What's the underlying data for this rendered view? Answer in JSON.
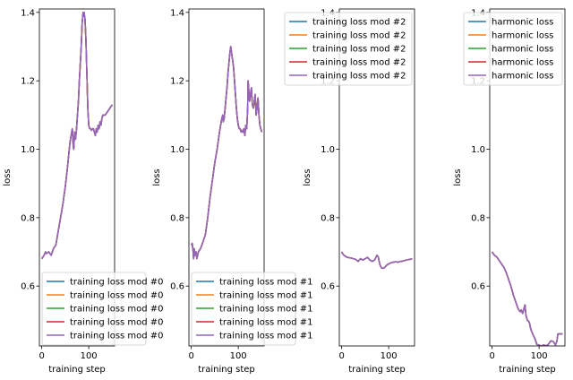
{
  "chart_data": [
    {
      "type": "line",
      "xlabel": "training step",
      "ylabel": "loss",
      "xlim": [
        -5,
        155
      ],
      "ylim": [
        0.425,
        1.41
      ],
      "xticks": [
        0,
        100
      ],
      "xtick_labels": [
        "0",
        "100"
      ],
      "yticks": [
        0.6,
        0.8,
        1.0,
        1.2,
        1.4
      ],
      "ytick_labels": [
        "0.6",
        "0.8",
        "1.0",
        "1.2",
        "1.4"
      ],
      "legend_position": "lower-right",
      "legend": [
        "training loss mod #0",
        "training loss mod #0",
        "training loss mod #0",
        "training loss mod #0",
        "training loss mod #0"
      ],
      "series": [
        {
          "name": "training loss mod #0",
          "x": [
            0,
            5,
            8,
            10,
            15,
            20,
            25,
            30,
            35,
            40,
            45,
            50,
            55,
            60,
            65,
            67,
            68,
            70,
            72,
            74,
            76,
            78,
            80,
            82,
            84,
            86,
            88,
            90,
            92,
            94,
            96,
            98,
            100,
            102,
            104,
            106,
            108,
            110,
            112,
            114,
            116,
            118,
            120,
            122,
            124,
            126,
            128,
            130,
            135,
            140,
            145,
            150
          ],
          "y": [
            0.68,
            0.69,
            0.7,
            0.695,
            0.7,
            0.69,
            0.71,
            0.72,
            0.76,
            0.8,
            0.84,
            0.89,
            0.95,
            1.02,
            1.06,
            1.01,
            1.0,
            1.05,
            1.03,
            1.06,
            1.1,
            1.14,
            1.2,
            1.25,
            1.3,
            1.37,
            1.4,
            1.4,
            1.38,
            1.32,
            1.22,
            1.12,
            1.07,
            1.06,
            1.06,
            1.055,
            1.06,
            1.06,
            1.05,
            1.04,
            1.06,
            1.05,
            1.07,
            1.06,
            1.08,
            1.07,
            1.09,
            1.1,
            1.1,
            1.11,
            1.12,
            1.13
          ]
        }
      ]
    },
    {
      "type": "line",
      "xlabel": "training step",
      "ylabel": "loss",
      "xlim": [
        -5,
        155
      ],
      "ylim": [
        0.425,
        1.41
      ],
      "xticks": [
        0,
        100
      ],
      "xtick_labels": [
        "0",
        "100"
      ],
      "yticks": [
        0.6,
        0.8,
        1.0,
        1.2,
        1.4
      ],
      "ytick_labels": [
        "0.6",
        "0.8",
        "1.0",
        "1.2",
        "1.4"
      ],
      "legend_position": "lower-right",
      "legend": [
        "training loss mod #1",
        "training loss mod #1",
        "training loss mod #1",
        "training loss mod #1",
        "training loss mod #1"
      ],
      "series": [
        {
          "name": "training loss mod #1",
          "x": [
            0,
            2,
            4,
            5,
            6,
            8,
            10,
            12,
            15,
            20,
            25,
            30,
            35,
            40,
            45,
            50,
            55,
            60,
            65,
            67,
            68,
            70,
            72,
            74,
            76,
            78,
            80,
            82,
            84,
            86,
            88,
            90,
            92,
            94,
            96,
            98,
            100,
            102,
            104,
            106,
            108,
            110,
            112,
            114,
            116,
            118,
            120,
            121,
            122,
            124,
            126,
            128,
            130,
            132,
            134,
            136,
            138,
            140,
            142,
            144,
            146,
            148,
            150
          ],
          "y": [
            0.72,
            0.725,
            0.7,
            0.68,
            0.71,
            0.69,
            0.7,
            0.68,
            0.7,
            0.71,
            0.73,
            0.75,
            0.8,
            0.86,
            0.91,
            0.96,
            1.0,
            1.05,
            1.09,
            1.1,
            1.08,
            1.09,
            1.12,
            1.15,
            1.18,
            1.22,
            1.25,
            1.28,
            1.3,
            1.28,
            1.26,
            1.24,
            1.2,
            1.16,
            1.12,
            1.09,
            1.07,
            1.06,
            1.06,
            1.05,
            1.055,
            1.05,
            1.06,
            1.04,
            1.07,
            1.06,
            1.12,
            1.2,
            1.18,
            1.14,
            1.16,
            1.18,
            1.13,
            1.12,
            1.14,
            1.16,
            1.1,
            1.12,
            1.15,
            1.1,
            1.07,
            1.06,
            1.05
          ]
        }
      ]
    },
    {
      "type": "line",
      "xlabel": "training step",
      "ylabel": "loss",
      "xlim": [
        -5,
        155
      ],
      "ylim": [
        0.425,
        1.41
      ],
      "xticks": [
        0,
        100
      ],
      "xtick_labels": [
        "0",
        "100"
      ],
      "yticks": [
        0.6,
        0.8,
        1.0,
        1.2,
        1.4
      ],
      "ytick_labels": [
        "0.6",
        "0.8",
        "1.0",
        "1.2",
        "1.4"
      ],
      "legend_position": "top-right",
      "legend": [
        "training loss mod #2",
        "training loss mod #2",
        "training loss mod #2",
        "training loss mod #2",
        "training loss mod #2"
      ],
      "series": [
        {
          "name": "training loss mod #2",
          "x": [
            0,
            2,
            5,
            10,
            15,
            20,
            25,
            30,
            35,
            40,
            45,
            50,
            55,
            60,
            65,
            70,
            75,
            78,
            80,
            82,
            85,
            88,
            90,
            95,
            100,
            105,
            110,
            115,
            120,
            125,
            130,
            135,
            140,
            145,
            150
          ],
          "y": [
            0.7,
            0.695,
            0.69,
            0.685,
            0.683,
            0.682,
            0.68,
            0.678,
            0.672,
            0.68,
            0.676,
            0.68,
            0.684,
            0.676,
            0.672,
            0.676,
            0.69,
            0.685,
            0.67,
            0.66,
            0.653,
            0.652,
            0.653,
            0.66,
            0.665,
            0.668,
            0.67,
            0.671,
            0.67,
            0.672,
            0.673,
            0.675,
            0.677,
            0.678,
            0.68
          ]
        }
      ]
    },
    {
      "type": "line",
      "xlabel": "training step",
      "ylabel": "loss",
      "xlim": [
        -5,
        155
      ],
      "ylim": [
        0.425,
        1.41
      ],
      "xticks": [
        0,
        100
      ],
      "xtick_labels": [
        "0",
        "100"
      ],
      "yticks": [
        0.6,
        0.8,
        1.0,
        1.2,
        1.4
      ],
      "ytick_labels": [
        "0.6",
        "0.8",
        "1.0",
        "1.2",
        "1.4"
      ],
      "legend_position": "top-right",
      "legend": [
        "harmonic loss",
        "harmonic loss",
        "harmonic loss",
        "harmonic loss",
        "harmonic loss"
      ],
      "series": [
        {
          "name": "harmonic loss",
          "x": [
            0,
            5,
            10,
            15,
            20,
            25,
            30,
            35,
            40,
            45,
            50,
            55,
            58,
            60,
            62,
            65,
            68,
            70,
            72,
            75,
            78,
            80,
            82,
            85,
            88,
            90,
            92,
            95,
            100,
            105,
            110,
            115,
            120,
            125,
            130,
            135,
            138,
            140,
            145,
            150
          ],
          "y": [
            0.7,
            0.69,
            0.685,
            0.675,
            0.665,
            0.655,
            0.64,
            0.62,
            0.6,
            0.575,
            0.555,
            0.535,
            0.528,
            0.525,
            0.53,
            0.52,
            0.535,
            0.545,
            0.515,
            0.5,
            0.497,
            0.49,
            0.475,
            0.465,
            0.455,
            0.45,
            0.443,
            0.43,
            0.427,
            0.425,
            0.428,
            0.425,
            0.43,
            0.44,
            0.438,
            0.428,
            0.44,
            0.46,
            0.46,
            0.46
          ]
        }
      ]
    }
  ],
  "line_colors": [
    "#1f77b4",
    "#ff7f0e",
    "#2ca02c",
    "#d62728",
    "#9467bd"
  ]
}
